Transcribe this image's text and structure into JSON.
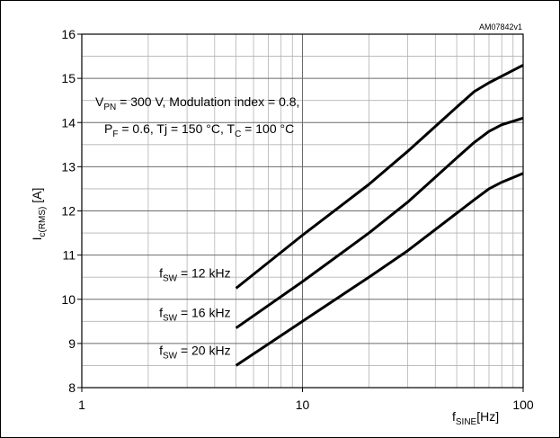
{
  "chart_data": {
    "type": "line",
    "id_label": "AM07842v1",
    "x_scale": "log",
    "xlim": [
      1,
      100
    ],
    "ylim": [
      8,
      16
    ],
    "grid": true,
    "x_tick_labels": [
      "1",
      "10",
      "100"
    ],
    "y_tick_labels": [
      "8",
      "9",
      "10",
      "11",
      "12",
      "13",
      "14",
      "15",
      "16"
    ],
    "ylabel": {
      "main": "I",
      "sub": "c(RMS)",
      "unit": " [A]"
    },
    "xlabel": {
      "main": "f",
      "sub": "SINE",
      "unit": "[Hz]"
    },
    "annotation": {
      "line1": {
        "a": "V",
        "a_sub": "PN",
        "b": " = 300 V, Modulation index = 0.8,"
      },
      "line2": {
        "a": "P",
        "a_sub": "F",
        "b": " = 0.6, Tj = 150 °C, T",
        "c_sub": "C",
        "d": " = 100 °C"
      }
    },
    "series": [
      {
        "label_main": "f",
        "label_sub": "SW",
        "label_rest": " = 12 kHz",
        "x": [
          5,
          10,
          20,
          30,
          50,
          60,
          70,
          80,
          100
        ],
        "y": [
          10.25,
          11.45,
          12.6,
          13.35,
          14.35,
          14.7,
          14.9,
          15.05,
          15.3
        ]
      },
      {
        "label_main": "f",
        "label_sub": "SW",
        "label_rest": " = 16 kHz",
        "x": [
          5,
          10,
          20,
          30,
          50,
          60,
          70,
          80,
          100
        ],
        "y": [
          9.35,
          10.4,
          11.5,
          12.2,
          13.2,
          13.55,
          13.8,
          13.95,
          14.1
        ]
      },
      {
        "label_main": "f",
        "label_sub": "SW",
        "label_rest": " = 20 kHz",
        "x": [
          5,
          10,
          20,
          30,
          50,
          60,
          70,
          80,
          100
        ],
        "y": [
          8.5,
          9.5,
          10.5,
          11.1,
          11.95,
          12.25,
          12.5,
          12.65,
          12.85
        ]
      }
    ]
  }
}
